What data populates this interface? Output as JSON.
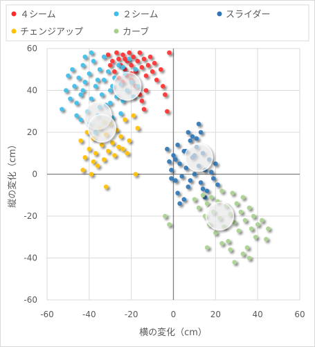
{
  "chart_data": {
    "type": "scatter",
    "xlabel": "横の変化（cm）",
    "ylabel": "縦の変化（cm）",
    "xlim": [
      -60,
      60
    ],
    "ylim": [
      -60,
      60
    ],
    "xticks": [
      "-60",
      "-40",
      "-20",
      "0",
      "20",
      "40",
      "60"
    ],
    "yticks": [
      "60",
      "40",
      "20",
      "0",
      "-20",
      "-40",
      "-60"
    ],
    "grid": true,
    "legend_position": "top",
    "series": [
      {
        "name": "４シーム",
        "color": "#ff2b2b",
        "points": [
          [
            -31,
            57
          ],
          [
            -29,
            54
          ],
          [
            -27,
            58
          ],
          [
            -26,
            55
          ],
          [
            -25,
            52
          ],
          [
            -24,
            57
          ],
          [
            -23,
            50
          ],
          [
            -22,
            54
          ],
          [
            -21,
            58
          ],
          [
            -20,
            52
          ],
          [
            -19,
            56
          ],
          [
            -18,
            49
          ],
          [
            -17,
            54
          ],
          [
            -16,
            58
          ],
          [
            -15,
            51
          ],
          [
            -14,
            55
          ],
          [
            -13,
            47
          ],
          [
            -12,
            52
          ],
          [
            -11,
            56
          ],
          [
            -10,
            49
          ],
          [
            -9,
            53
          ],
          [
            -8,
            45
          ],
          [
            -6,
            50
          ],
          [
            -5,
            42
          ],
          [
            -4,
            38
          ],
          [
            -3,
            30
          ],
          [
            -2,
            58
          ],
          [
            -28,
            49
          ],
          [
            -26,
            46
          ],
          [
            -24,
            44
          ],
          [
            -22,
            47
          ],
          [
            -20,
            45
          ],
          [
            -18,
            42
          ],
          [
            -16,
            38
          ],
          [
            -15,
            35
          ],
          [
            -14,
            31
          ],
          [
            -13,
            40
          ],
          [
            -30,
            52
          ],
          [
            -20,
            48
          ],
          [
            -23,
            55
          ]
        ],
        "mean": [
          -22,
          42
        ]
      },
      {
        "name": "２シーム",
        "color": "#3fbce9",
        "points": [
          [
            -53,
            31
          ],
          [
            -51,
            40
          ],
          [
            -50,
            47
          ],
          [
            -49,
            36
          ],
          [
            -48,
            50
          ],
          [
            -47,
            42
          ],
          [
            -46,
            34
          ],
          [
            -45,
            46
          ],
          [
            -44,
            38
          ],
          [
            -43,
            52
          ],
          [
            -42,
            44
          ],
          [
            -41,
            30
          ],
          [
            -40,
            48
          ],
          [
            -39,
            36
          ],
          [
            -38,
            54
          ],
          [
            -37,
            42
          ],
          [
            -36,
            28
          ],
          [
            -35,
            50
          ],
          [
            -34,
            38
          ],
          [
            -33,
            45
          ],
          [
            -32,
            33
          ],
          [
            -31,
            49
          ],
          [
            -30,
            40
          ],
          [
            -29,
            27
          ],
          [
            -28,
            46
          ],
          [
            -27,
            37
          ],
          [
            -26,
            52
          ],
          [
            -25,
            43
          ],
          [
            -24,
            35
          ],
          [
            -23,
            48
          ],
          [
            -22,
            40
          ],
          [
            -21,
            55
          ],
          [
            -20,
            44
          ],
          [
            -19,
            37
          ],
          [
            -18,
            50
          ],
          [
            -17,
            42
          ],
          [
            -44,
            26
          ],
          [
            -40,
            24
          ],
          [
            -37,
            20
          ],
          [
            -35,
            32
          ],
          [
            -42,
            56
          ],
          [
            -39,
            58
          ],
          [
            -46,
            28
          ],
          [
            -33,
            56
          ],
          [
            -30,
            34
          ],
          [
            -25,
            29
          ],
          [
            -43,
            40
          ],
          [
            -36,
            45
          ],
          [
            -29,
            42
          ],
          [
            -24,
            51
          ]
        ],
        "mean": [
          -36,
          28
        ]
      },
      {
        "name": "スライダー",
        "color": "#2e75b6",
        "points": [
          [
            -3,
            12
          ],
          [
            -2,
            6
          ],
          [
            -1,
            2
          ],
          [
            0,
            9
          ],
          [
            1,
            -3
          ],
          [
            2,
            14
          ],
          [
            3,
            5
          ],
          [
            4,
            -1
          ],
          [
            5,
            11
          ],
          [
            6,
            3
          ],
          [
            7,
            -6
          ],
          [
            8,
            16
          ],
          [
            9,
            8
          ],
          [
            10,
            0
          ],
          [
            11,
            13
          ],
          [
            12,
            4
          ],
          [
            13,
            -4
          ],
          [
            14,
            10
          ],
          [
            15,
            2
          ],
          [
            16,
            -8
          ],
          [
            17,
            7
          ],
          [
            18,
            1
          ],
          [
            19,
            -2
          ],
          [
            20,
            5
          ],
          [
            21,
            -5
          ],
          [
            7,
            20
          ],
          [
            9,
            18
          ],
          [
            12,
            24
          ],
          [
            5,
            -12
          ],
          [
            3,
            -14
          ],
          [
            -1,
            -2
          ],
          [
            1,
            7
          ],
          [
            13,
            20
          ],
          [
            15,
            -11
          ],
          [
            6,
            11
          ],
          [
            8,
            -3
          ],
          [
            10,
            9
          ],
          [
            2,
            -9
          ],
          [
            11,
            17
          ],
          [
            14,
            -7
          ]
        ],
        "mean": [
          12,
          8
        ]
      },
      {
        "name": "チェンジアップ",
        "color": "#ffc000",
        "points": [
          [
            -44,
            16
          ],
          [
            -43,
            2
          ],
          [
            -42,
            8
          ],
          [
            -41,
            20
          ],
          [
            -40,
            12
          ],
          [
            -39,
            0
          ],
          [
            -38,
            17
          ],
          [
            -37,
            10
          ],
          [
            -36,
            4
          ],
          [
            -35,
            22
          ],
          [
            -34,
            14
          ],
          [
            -33,
            7
          ],
          [
            -32,
            19
          ],
          [
            -31,
            11
          ],
          [
            -30,
            24
          ],
          [
            -29,
            15
          ],
          [
            -28,
            9
          ],
          [
            -27,
            21
          ],
          [
            -26,
            13
          ],
          [
            -25,
            18
          ],
          [
            -24,
            12
          ],
          [
            -23,
            26
          ],
          [
            -22,
            10
          ],
          [
            -21,
            16
          ],
          [
            -19,
            28
          ],
          [
            -18,
            0
          ],
          [
            -17,
            22
          ],
          [
            -32,
            -6
          ],
          [
            -38,
            6
          ],
          [
            -33,
            25
          ]
        ],
        "mean": [
          -34,
          22
        ]
      },
      {
        "name": "カーブ",
        "color": "#a9d18e",
        "points": [
          [
            -4,
            -20
          ],
          [
            -2,
            -24
          ],
          [
            10,
            -12
          ],
          [
            12,
            -16
          ],
          [
            14,
            -10
          ],
          [
            15,
            -20
          ],
          [
            16,
            -14
          ],
          [
            17,
            -24
          ],
          [
            18,
            -11
          ],
          [
            19,
            -18
          ],
          [
            20,
            -28
          ],
          [
            21,
            -13
          ],
          [
            22,
            -21
          ],
          [
            23,
            -8
          ],
          [
            24,
            -25
          ],
          [
            25,
            -15
          ],
          [
            26,
            -32
          ],
          [
            27,
            -19
          ],
          [
            28,
            -9
          ],
          [
            29,
            -23
          ],
          [
            30,
            -14
          ],
          [
            31,
            -27
          ],
          [
            32,
            -18
          ],
          [
            33,
            -11
          ],
          [
            34,
            -22
          ],
          [
            35,
            -35
          ],
          [
            36,
            -16
          ],
          [
            37,
            -26
          ],
          [
            38,
            -20
          ],
          [
            39,
            -30
          ],
          [
            40,
            -24
          ],
          [
            42,
            -22
          ],
          [
            44,
            -31
          ],
          [
            45,
            -26
          ],
          [
            16,
            -35
          ],
          [
            23,
            -33
          ],
          [
            27,
            -36
          ],
          [
            33,
            -38
          ],
          [
            36,
            -40
          ],
          [
            29,
            -42
          ]
        ],
        "mean": [
          22,
          -20
        ]
      }
    ]
  }
}
